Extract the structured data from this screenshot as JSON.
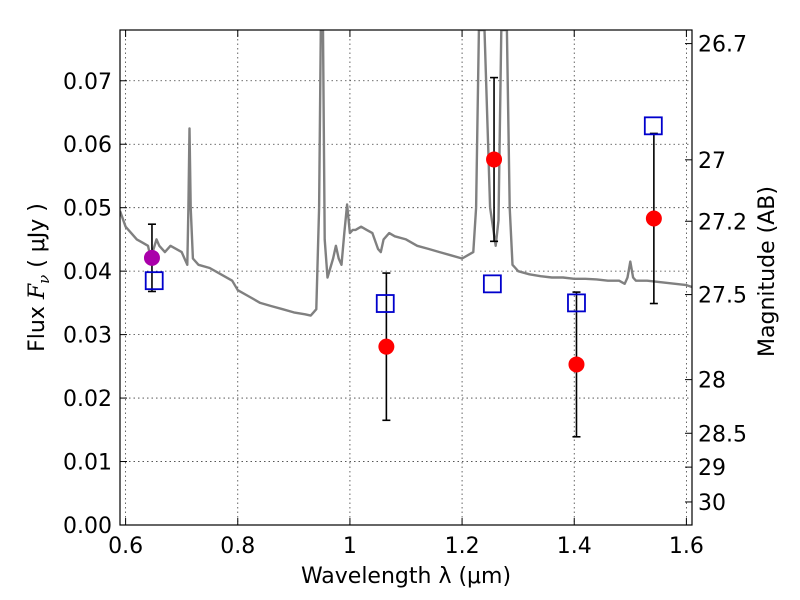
{
  "chart_data": {
    "type": "scatter",
    "xlabel": "Wavelength  λ (μm)",
    "ylabel": {
      "prefix": "Flux  ",
      "var": "F",
      "sub": "ν",
      "suffix": "  ( μJy )"
    },
    "y2label": "Magnitude (AB)",
    "xlim": [
      0.59,
      1.61
    ],
    "ylim": [
      0.0,
      0.078
    ],
    "grid": true,
    "x_ticks": [
      0.6,
      0.8,
      1.0,
      1.2,
      1.4,
      1.6
    ],
    "x_tick_labels": [
      "0.6",
      "0.8",
      "1",
      "1.2",
      "1.4",
      "1.6"
    ],
    "y_ticks": [
      0.0,
      0.01,
      0.02,
      0.03,
      0.04,
      0.05,
      0.06,
      0.07
    ],
    "y_tick_labels": [
      "0.00",
      "0.01",
      "0.02",
      "0.03",
      "0.04",
      "0.05",
      "0.06",
      "0.07"
    ],
    "y2_ticks": [
      {
        "label": "26.7",
        "mag": 26.7
      },
      {
        "label": "27",
        "mag": 27.0
      },
      {
        "label": "27.2",
        "mag": 27.2
      },
      {
        "label": "27.5",
        "mag": 27.5
      },
      {
        "label": "28",
        "mag": 28.0
      },
      {
        "label": "28.5",
        "mag": 28.5
      },
      {
        "label": "29",
        "mag": 29.0
      },
      {
        "label": "30",
        "mag": 30.0
      }
    ],
    "series": [
      {
        "kind": "line",
        "color": "#808080",
        "x": [
          0.59,
          0.6,
          0.61,
          0.62,
          0.63,
          0.64,
          0.645,
          0.65,
          0.655,
          0.66,
          0.67,
          0.68,
          0.69,
          0.7,
          0.705,
          0.71,
          0.712,
          0.714,
          0.716,
          0.72,
          0.73,
          0.75,
          0.77,
          0.79,
          0.8,
          0.82,
          0.84,
          0.86,
          0.88,
          0.9,
          0.92,
          0.93,
          0.935,
          0.94,
          0.945,
          0.948,
          0.95,
          0.952,
          0.955,
          0.96,
          0.97,
          0.975,
          0.98,
          0.985,
          0.99,
          0.995,
          1.0,
          1.005,
          1.01,
          1.02,
          1.03,
          1.04,
          1.05,
          1.055,
          1.06,
          1.07,
          1.08,
          1.1,
          1.12,
          1.14,
          1.16,
          1.18,
          1.2,
          1.22,
          1.225,
          1.23,
          1.235,
          1.24,
          1.25,
          1.26,
          1.265,
          1.27,
          1.272,
          1.275,
          1.28,
          1.285,
          1.29,
          1.295,
          1.3,
          1.32,
          1.34,
          1.36,
          1.38,
          1.4,
          1.42,
          1.44,
          1.46,
          1.48,
          1.49,
          1.495,
          1.5,
          1.505,
          1.51,
          1.53,
          1.56,
          1.58,
          1.6,
          1.61
        ],
        "y": [
          0.0495,
          0.047,
          0.046,
          0.045,
          0.0445,
          0.044,
          0.042,
          0.0435,
          0.045,
          0.044,
          0.043,
          0.044,
          0.0435,
          0.043,
          0.042,
          0.041,
          0.05,
          0.0625,
          0.05,
          0.042,
          0.041,
          0.0405,
          0.0395,
          0.0385,
          0.037,
          0.036,
          0.035,
          0.0345,
          0.034,
          0.0335,
          0.0332,
          0.033,
          0.0335,
          0.034,
          0.05,
          0.078,
          0.078,
          0.078,
          0.045,
          0.039,
          0.042,
          0.044,
          0.042,
          0.041,
          0.046,
          0.0505,
          0.046,
          0.0465,
          0.0465,
          0.047,
          0.0465,
          0.046,
          0.0435,
          0.043,
          0.045,
          0.046,
          0.0455,
          0.045,
          0.044,
          0.0435,
          0.043,
          0.0425,
          0.042,
          0.043,
          0.05,
          0.078,
          0.078,
          0.078,
          0.05,
          0.044,
          0.048,
          0.078,
          0.078,
          0.078,
          0.078,
          0.05,
          0.041,
          0.0405,
          0.04,
          0.0395,
          0.0392,
          0.039,
          0.039,
          0.0388,
          0.0388,
          0.0387,
          0.0385,
          0.0385,
          0.038,
          0.039,
          0.0415,
          0.039,
          0.0385,
          0.0385,
          0.0382,
          0.038,
          0.0378,
          0.0375
        ]
      },
      {
        "kind": "errorbar",
        "color": "#ff0000",
        "points": [
          {
            "x": 1.065,
            "y": 0.0281,
            "err": 0.0116
          },
          {
            "x": 1.257,
            "y": 0.0576,
            "err": 0.0129
          },
          {
            "x": 1.404,
            "y": 0.0253,
            "err": 0.0114
          },
          {
            "x": 1.542,
            "y": 0.0483,
            "err": 0.0134
          }
        ]
      },
      {
        "kind": "errorbar",
        "color": "#aa00aa",
        "points": [
          {
            "x": 0.647,
            "y": 0.0421,
            "err": 0.0053
          }
        ]
      },
      {
        "kind": "squares",
        "color": "#0000cc",
        "points": [
          {
            "x": 0.651,
            "y": 0.0385
          },
          {
            "x": 1.063,
            "y": 0.0349
          },
          {
            "x": 1.254,
            "y": 0.038
          },
          {
            "x": 1.404,
            "y": 0.035
          },
          {
            "x": 1.541,
            "y": 0.0629
          }
        ]
      }
    ]
  }
}
